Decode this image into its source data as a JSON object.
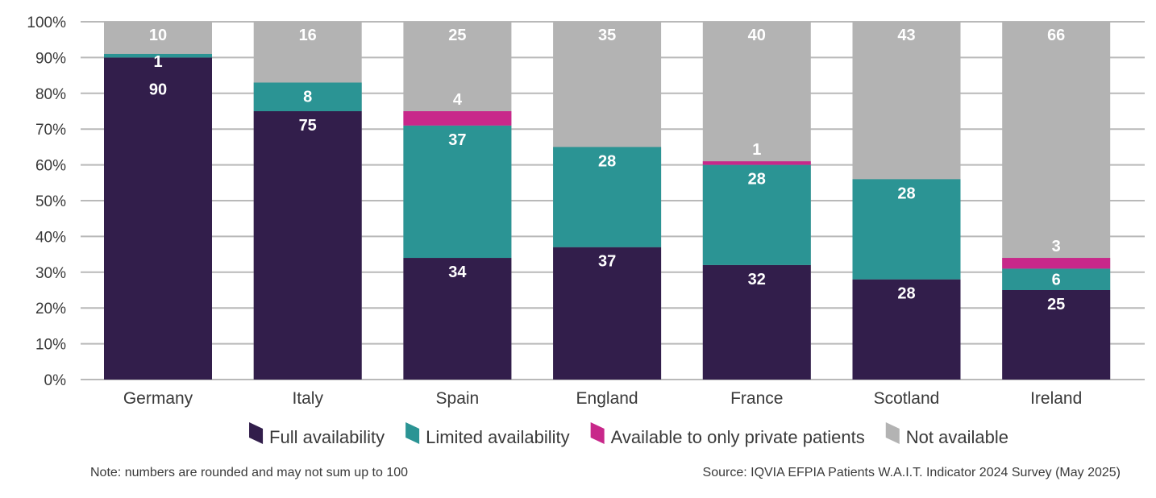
{
  "chart_data": {
    "type": "bar",
    "stacked": true,
    "categories": [
      "Germany",
      "Italy",
      "Spain",
      "England",
      "France",
      "Scotland",
      "Ireland"
    ],
    "series": [
      {
        "name": "Full availability",
        "color": "#321e4b",
        "values": [
          90,
          75,
          34,
          37,
          32,
          28,
          25
        ]
      },
      {
        "name": "Limited availability",
        "color": "#2b9494",
        "values": [
          1,
          8,
          37,
          28,
          28,
          28,
          6
        ]
      },
      {
        "name": "Available to only private patients",
        "color": "#c8288a",
        "values": [
          0,
          0,
          4,
          0,
          1,
          0,
          3
        ]
      },
      {
        "name": "Not available",
        "color": "#b3b3b3",
        "values": [
          10,
          16,
          25,
          35,
          40,
          43,
          66
        ]
      }
    ],
    "ylim": [
      0,
      100
    ],
    "yticks": [
      "0%",
      "10%",
      "20%",
      "30%",
      "40%",
      "50%",
      "60%",
      "70%",
      "80%",
      "90%",
      "100%"
    ],
    "grid": true,
    "legend_position": "bottom"
  },
  "note": "Note: numbers are rounded and may not sum up to 100",
  "source": "Source: IQVIA EFPIA Patients W.A.I.T. Indicator 2024 Survey (May 2025)"
}
